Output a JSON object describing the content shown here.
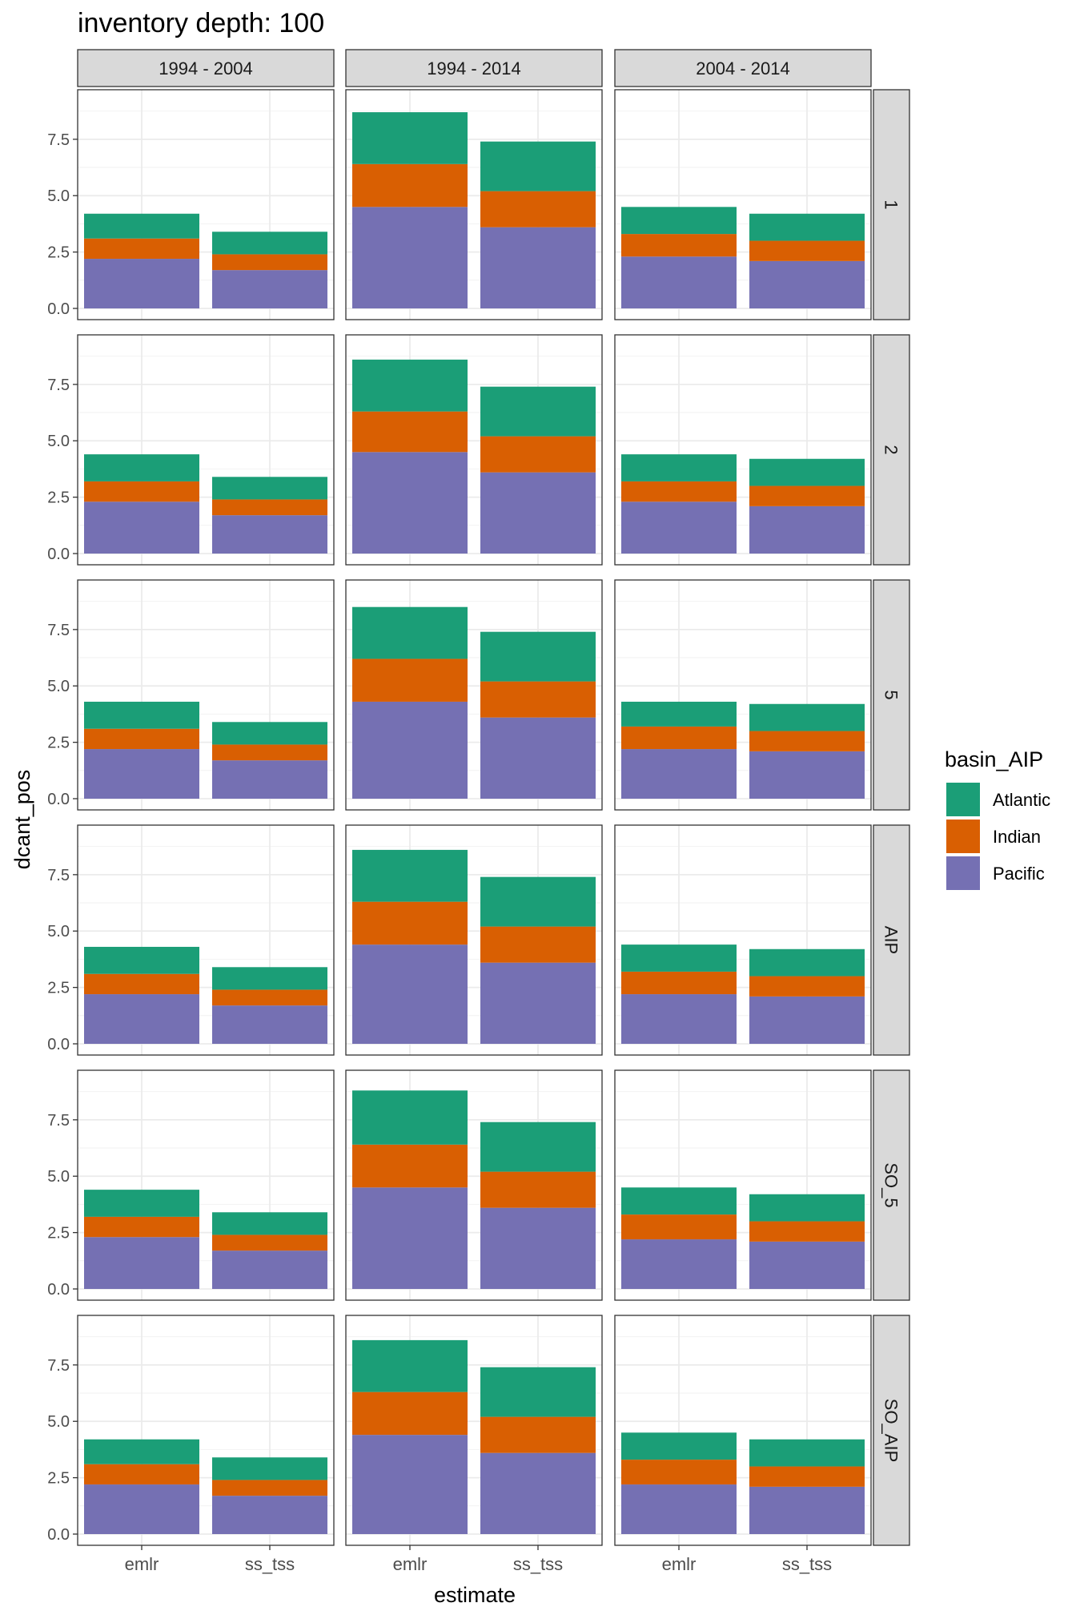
{
  "chart_data": {
    "type": "bar",
    "stacked": true,
    "title": "inventory depth: 100",
    "xlabel": "estimate",
    "ylabel": "dcant_pos",
    "ylim": [
      0,
      9.2
    ],
    "yticks": [
      "0.0",
      "2.5",
      "5.0",
      "7.5"
    ],
    "ytick_values": [
      0,
      2.5,
      5,
      7.5
    ],
    "categories": [
      "emlr",
      "ss_tss"
    ],
    "column_facets": [
      "1994 - 2004",
      "1994 - 2014",
      "2004 - 2014"
    ],
    "row_facets": [
      "1",
      "2",
      "5",
      "AIP",
      "SO_5",
      "SO_AIP"
    ],
    "legend": {
      "title": "basin_AIP",
      "position": "right",
      "entries": [
        "Atlantic",
        "Indian",
        "Pacific"
      ]
    },
    "colors": {
      "Atlantic": "#1b9e77",
      "Indian": "#d95f02",
      "Pacific": "#7570b3"
    },
    "stack_order": [
      "Pacific",
      "Indian",
      "Atlantic"
    ],
    "grid": true,
    "panels": [
      {
        "row": "1",
        "col": "1994 - 2004",
        "emlr": {
          "Pacific": 2.2,
          "Indian": 0.9,
          "Atlantic": 1.1
        },
        "ss_tss": {
          "Pacific": 1.7,
          "Indian": 0.7,
          "Atlantic": 1.0
        }
      },
      {
        "row": "1",
        "col": "1994 - 2014",
        "emlr": {
          "Pacific": 4.5,
          "Indian": 1.9,
          "Atlantic": 2.3
        },
        "ss_tss": {
          "Pacific": 3.6,
          "Indian": 1.6,
          "Atlantic": 2.2
        }
      },
      {
        "row": "1",
        "col": "2004 - 2014",
        "emlr": {
          "Pacific": 2.3,
          "Indian": 1.0,
          "Atlantic": 1.2
        },
        "ss_tss": {
          "Pacific": 2.1,
          "Indian": 0.9,
          "Atlantic": 1.2
        }
      },
      {
        "row": "2",
        "col": "1994 - 2004",
        "emlr": {
          "Pacific": 2.3,
          "Indian": 0.9,
          "Atlantic": 1.2
        },
        "ss_tss": {
          "Pacific": 1.7,
          "Indian": 0.7,
          "Atlantic": 1.0
        }
      },
      {
        "row": "2",
        "col": "1994 - 2014",
        "emlr": {
          "Pacific": 4.5,
          "Indian": 1.8,
          "Atlantic": 2.3
        },
        "ss_tss": {
          "Pacific": 3.6,
          "Indian": 1.6,
          "Atlantic": 2.2
        }
      },
      {
        "row": "2",
        "col": "2004 - 2014",
        "emlr": {
          "Pacific": 2.3,
          "Indian": 0.9,
          "Atlantic": 1.2
        },
        "ss_tss": {
          "Pacific": 2.1,
          "Indian": 0.9,
          "Atlantic": 1.2
        }
      },
      {
        "row": "5",
        "col": "1994 - 2004",
        "emlr": {
          "Pacific": 2.2,
          "Indian": 0.9,
          "Atlantic": 1.2
        },
        "ss_tss": {
          "Pacific": 1.7,
          "Indian": 0.7,
          "Atlantic": 1.0
        }
      },
      {
        "row": "5",
        "col": "1994 - 2014",
        "emlr": {
          "Pacific": 4.3,
          "Indian": 1.9,
          "Atlantic": 2.3
        },
        "ss_tss": {
          "Pacific": 3.6,
          "Indian": 1.6,
          "Atlantic": 2.2
        }
      },
      {
        "row": "5",
        "col": "2004 - 2014",
        "emlr": {
          "Pacific": 2.2,
          "Indian": 1.0,
          "Atlantic": 1.1
        },
        "ss_tss": {
          "Pacific": 2.1,
          "Indian": 0.9,
          "Atlantic": 1.2
        }
      },
      {
        "row": "AIP",
        "col": "1994 - 2004",
        "emlr": {
          "Pacific": 2.2,
          "Indian": 0.9,
          "Atlantic": 1.2
        },
        "ss_tss": {
          "Pacific": 1.7,
          "Indian": 0.7,
          "Atlantic": 1.0
        }
      },
      {
        "row": "AIP",
        "col": "1994 - 2014",
        "emlr": {
          "Pacific": 4.4,
          "Indian": 1.9,
          "Atlantic": 2.3
        },
        "ss_tss": {
          "Pacific": 3.6,
          "Indian": 1.6,
          "Atlantic": 2.2
        }
      },
      {
        "row": "AIP",
        "col": "2004 - 2014",
        "emlr": {
          "Pacific": 2.2,
          "Indian": 1.0,
          "Atlantic": 1.2
        },
        "ss_tss": {
          "Pacific": 2.1,
          "Indian": 0.9,
          "Atlantic": 1.2
        }
      },
      {
        "row": "SO_5",
        "col": "1994 - 2004",
        "emlr": {
          "Pacific": 2.3,
          "Indian": 0.9,
          "Atlantic": 1.2
        },
        "ss_tss": {
          "Pacific": 1.7,
          "Indian": 0.7,
          "Atlantic": 1.0
        }
      },
      {
        "row": "SO_5",
        "col": "1994 - 2014",
        "emlr": {
          "Pacific": 4.5,
          "Indian": 1.9,
          "Atlantic": 2.4
        },
        "ss_tss": {
          "Pacific": 3.6,
          "Indian": 1.6,
          "Atlantic": 2.2
        }
      },
      {
        "row": "SO_5",
        "col": "2004 - 2014",
        "emlr": {
          "Pacific": 2.2,
          "Indian": 1.1,
          "Atlantic": 1.2
        },
        "ss_tss": {
          "Pacific": 2.1,
          "Indian": 0.9,
          "Atlantic": 1.2
        }
      },
      {
        "row": "SO_AIP",
        "col": "1994 - 2004",
        "emlr": {
          "Pacific": 2.2,
          "Indian": 0.9,
          "Atlantic": 1.1
        },
        "ss_tss": {
          "Pacific": 1.7,
          "Indian": 0.7,
          "Atlantic": 1.0
        }
      },
      {
        "row": "SO_AIP",
        "col": "1994 - 2014",
        "emlr": {
          "Pacific": 4.4,
          "Indian": 1.9,
          "Atlantic": 2.3
        },
        "ss_tss": {
          "Pacific": 3.6,
          "Indian": 1.6,
          "Atlantic": 2.2
        }
      },
      {
        "row": "SO_AIP",
        "col": "2004 - 2014",
        "emlr": {
          "Pacific": 2.2,
          "Indian": 1.1,
          "Atlantic": 1.2
        },
        "ss_tss": {
          "Pacific": 2.1,
          "Indian": 0.9,
          "Atlantic": 1.2
        }
      }
    ]
  }
}
